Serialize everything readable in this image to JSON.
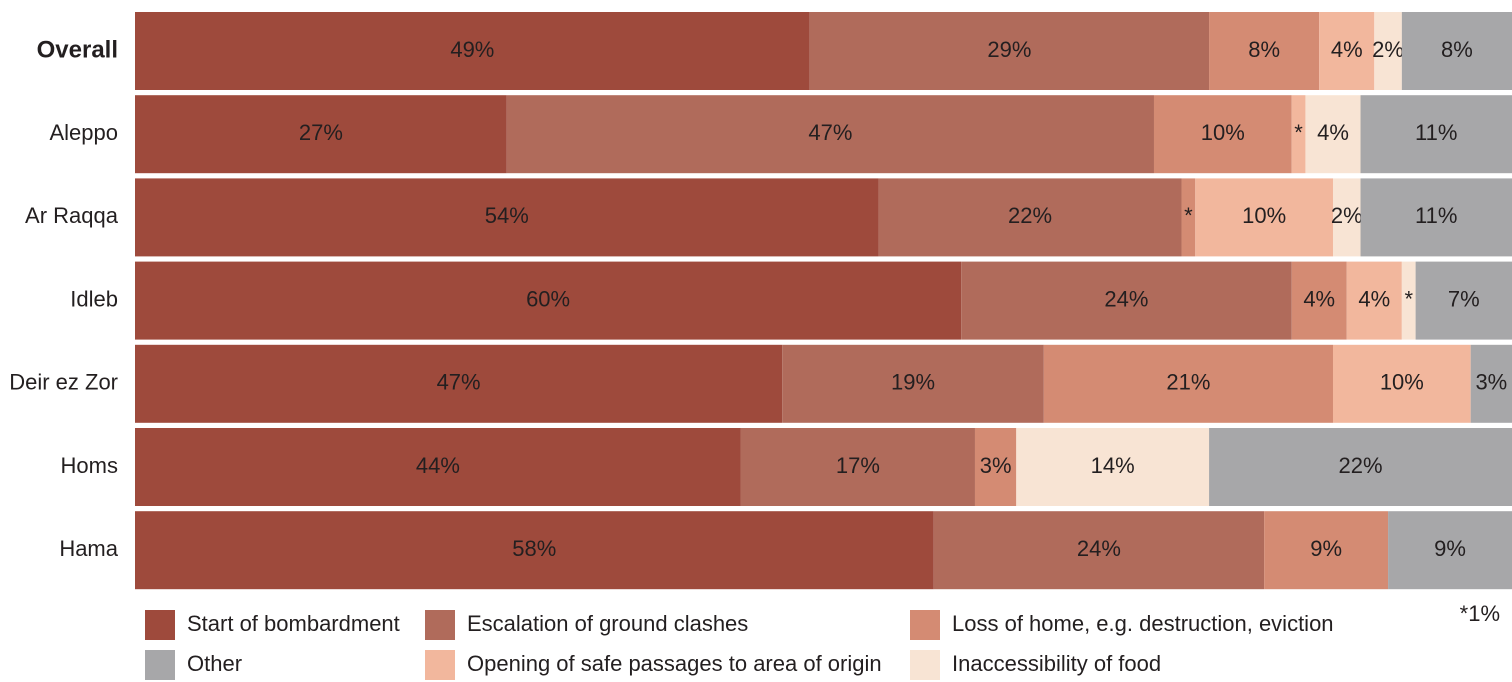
{
  "chart_data": {
    "type": "stacked-bar-horizontal",
    "categories": [
      "Overall",
      "Aleppo",
      "Ar Raqqa",
      "Idleb",
      "Deir ez Zor",
      "Homs",
      "Hama"
    ],
    "xlim": [
      0,
      100
    ],
    "series": [
      {
        "name": "Start of bombardment",
        "color": "#9e4a3c",
        "label_color": "#ffffff",
        "values": [
          49,
          27,
          54,
          60,
          47,
          44,
          58
        ],
        "value_labels": [
          "49%",
          "27%",
          "54%",
          "60%",
          "47%",
          "44%",
          "58%"
        ]
      },
      {
        "name": "Escalation of ground clashes",
        "color": "#b06b5b",
        "label_color": "#ffffff",
        "values": [
          29,
          47,
          22,
          24,
          19,
          17,
          24
        ],
        "value_labels": [
          "29%",
          "47%",
          "22%",
          "24%",
          "19%",
          "17%",
          "24%"
        ]
      },
      {
        "name": "Loss of home, e.g. destruction, eviction",
        "color": "#d48b73",
        "label_color": "#ffffff",
        "values": [
          8,
          10,
          1,
          4,
          21,
          3,
          9
        ],
        "value_labels": [
          "8%",
          "10%",
          "*",
          "4%",
          "21%",
          "3%",
          "9%"
        ]
      },
      {
        "name": "Opening of safe passages to area of origin",
        "color": "#f2b79d",
        "label_color": "#231f20",
        "values": [
          4,
          1,
          10,
          4,
          10,
          0,
          0
        ],
        "value_labels": [
          "4%",
          "*",
          "10%",
          "4%",
          "10%",
          null,
          null
        ]
      },
      {
        "name": "Inaccessibility of food",
        "color": "#f8e4d4",
        "label_color": "#231f20",
        "values": [
          2,
          4,
          2,
          1,
          0,
          14,
          0
        ],
        "value_labels": [
          "2%",
          "4%",
          "2%",
          "*",
          null,
          "14%",
          null
        ]
      },
      {
        "name": "Other",
        "color": "#a7a7a9",
        "label_color": "#231f20",
        "values": [
          8,
          11,
          11,
          7,
          3,
          22,
          9
        ],
        "value_labels": [
          "8%",
          "11%",
          "11%",
          "7%",
          "3%",
          "22%",
          "9%"
        ]
      }
    ],
    "legend_order": [
      0,
      1,
      2,
      5,
      3,
      4
    ],
    "footnote": "*1%"
  }
}
